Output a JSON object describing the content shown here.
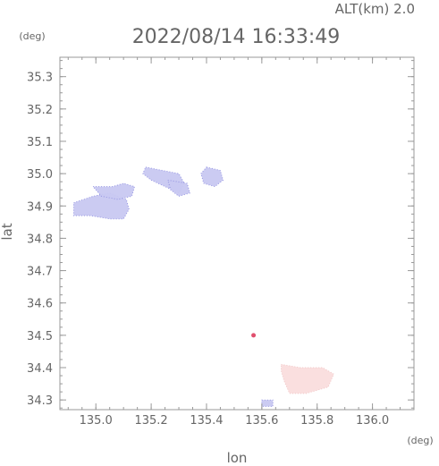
{
  "header": {
    "altitude_label": "ALT(km) 2.0",
    "timestamp": "2022/08/14 16:33:49"
  },
  "chart_data": {
    "type": "heatmap",
    "xlabel": "lon",
    "ylabel": "lat",
    "x_unit": "(deg)",
    "y_unit": "(deg)",
    "xlim": [
      134.87,
      136.15
    ],
    "ylim": [
      34.27,
      35.36
    ],
    "x_ticks": [
      "135.0",
      "135.2",
      "135.4",
      "135.6",
      "135.8",
      "136.0"
    ],
    "y_ticks": [
      "34.3",
      "34.4",
      "34.5",
      "34.6",
      "34.7",
      "34.8",
      "34.9",
      "35.0",
      "35.1",
      "35.2",
      "35.3"
    ],
    "colors": {
      "frame": "#999999",
      "negative": "#c9c9f2",
      "negative_dark": "#8f8fe0",
      "positive": "#fadede",
      "station": "#e0506e"
    },
    "regions": [
      {
        "sign": "negative",
        "points": [
          [
            134.92,
            34.91
          ],
          [
            134.99,
            34.93
          ],
          [
            135.05,
            34.94
          ],
          [
            135.11,
            34.92
          ],
          [
            135.12,
            34.89
          ],
          [
            135.1,
            34.86
          ],
          [
            135.05,
            34.86
          ],
          [
            134.98,
            34.87
          ],
          [
            134.92,
            34.87
          ]
        ]
      },
      {
        "sign": "negative",
        "points": [
          [
            134.99,
            34.96
          ],
          [
            135.06,
            34.96
          ],
          [
            135.1,
            34.97
          ],
          [
            135.14,
            34.96
          ],
          [
            135.13,
            34.93
          ],
          [
            135.08,
            34.92
          ],
          [
            135.02,
            34.93
          ]
        ]
      },
      {
        "sign": "negative",
        "points": [
          [
            135.18,
            35.02
          ],
          [
            135.24,
            35.01
          ],
          [
            135.3,
            35.0
          ],
          [
            135.32,
            34.97
          ],
          [
            135.3,
            34.94
          ],
          [
            135.25,
            34.96
          ],
          [
            135.2,
            34.98
          ],
          [
            135.17,
            35.0
          ]
        ]
      },
      {
        "sign": "negative",
        "points": [
          [
            135.26,
            34.98
          ],
          [
            135.33,
            34.97
          ],
          [
            135.34,
            34.94
          ],
          [
            135.3,
            34.93
          ],
          [
            135.27,
            34.95
          ]
        ]
      },
      {
        "sign": "negative",
        "points": [
          [
            135.4,
            35.02
          ],
          [
            135.45,
            35.01
          ],
          [
            135.46,
            34.98
          ],
          [
            135.43,
            34.96
          ],
          [
            135.39,
            34.97
          ],
          [
            135.38,
            35.0
          ]
        ]
      },
      {
        "sign": "negative",
        "points": [
          [
            135.6,
            34.3
          ],
          [
            135.64,
            34.3
          ],
          [
            135.64,
            34.28
          ],
          [
            135.6,
            34.28
          ]
        ]
      },
      {
        "sign": "positive",
        "points": [
          [
            135.67,
            34.41
          ],
          [
            135.74,
            34.4
          ],
          [
            135.82,
            34.4
          ],
          [
            135.86,
            34.38
          ],
          [
            135.84,
            34.34
          ],
          [
            135.76,
            34.32
          ],
          [
            135.7,
            34.32
          ],
          [
            135.68,
            34.36
          ],
          [
            135.67,
            34.39
          ]
        ]
      }
    ],
    "stations": [
      {
        "lon": 135.57,
        "lat": 34.5
      }
    ]
  }
}
